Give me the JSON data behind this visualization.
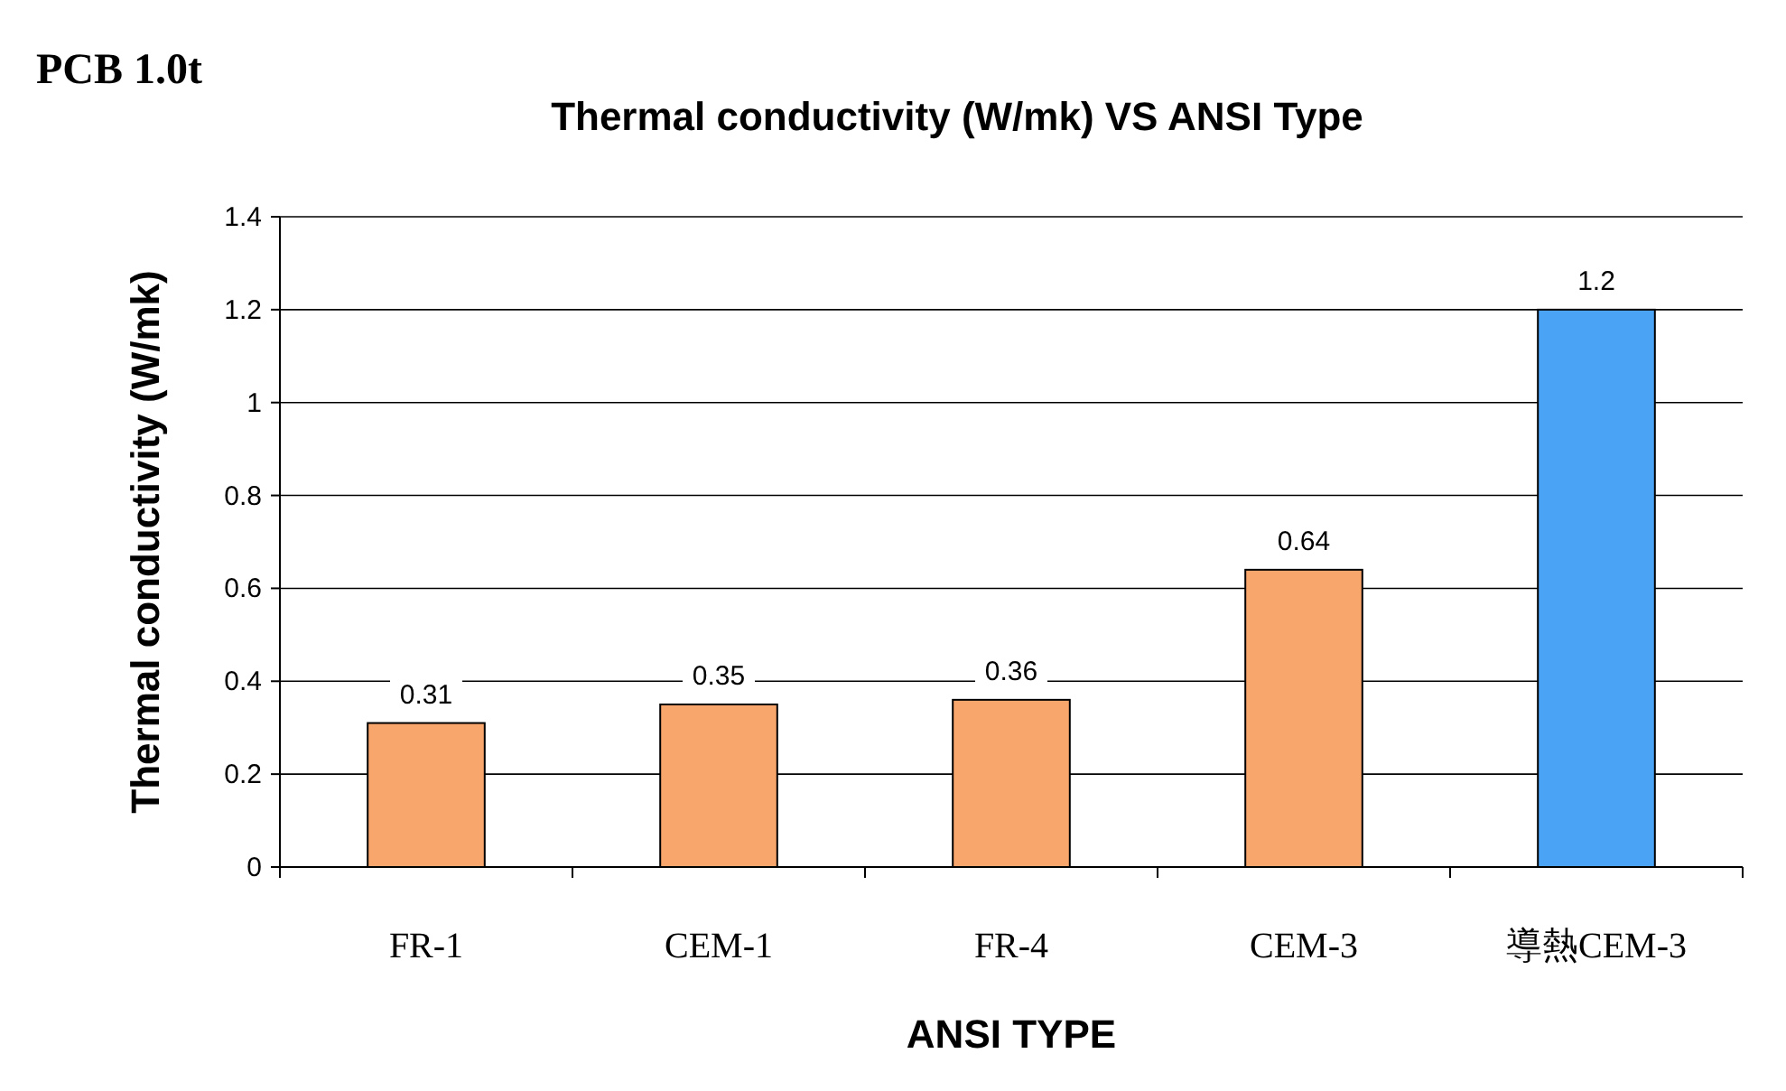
{
  "chart_data": {
    "type": "bar",
    "title": "Thermal conductivity (W/mk) VS ANSI Type",
    "annotations": [
      "PCB 1.0t"
    ],
    "xlabel": "ANSI TYPE",
    "ylabel": "Thermal conductivity (W/mk)",
    "categories": [
      "FR-1",
      "CEM-1",
      "FR-4",
      "CEM-3",
      "導熱CEM-3"
    ],
    "values": [
      0.31,
      0.35,
      0.36,
      0.64,
      1.2
    ],
    "colors": [
      "#f9a66c",
      "#f9a66c",
      "#f9a66c",
      "#f9a66c",
      "#4aa3f5"
    ],
    "ylim": [
      0,
      1.4
    ],
    "yticks": [
      0,
      0.2,
      0.4,
      0.6,
      0.8,
      1,
      1.2,
      1.4
    ],
    "grid": "y",
    "data_labels": true
  }
}
